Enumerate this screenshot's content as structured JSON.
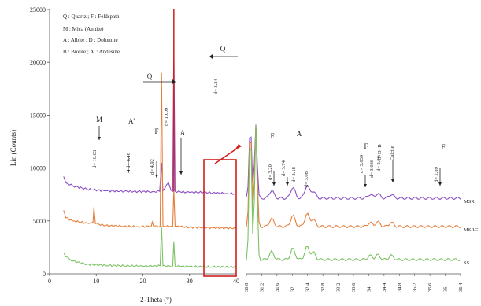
{
  "chart_data": {
    "type": "line",
    "xlabel": "2-Theta (°)",
    "ylabel": "Lin (Counts)",
    "xlim": [
      0,
      40
    ],
    "ylim": [
      0,
      25000
    ],
    "x_ticks": [
      "0",
      "10",
      "20",
      "30",
      "40"
    ],
    "y_ticks": [
      "0",
      "5000",
      "10000",
      "15000",
      "20000",
      "25000"
    ],
    "legend": [
      "Q : Quartz ; F : Feldspath",
      "M : Mica (Annite)",
      "A : Albite ; D : Dolomite",
      "B : Biotite ; A' : Andesine"
    ],
    "series": [
      {
        "name": "MSR",
        "color": "#8a4fc3",
        "points": [
          [
            3,
            9200
          ],
          [
            3.5,
            8600
          ],
          [
            5,
            8300
          ],
          [
            8,
            8000
          ],
          [
            12,
            7850
          ],
          [
            16,
            7800
          ],
          [
            19,
            7780
          ],
          [
            22,
            7760
          ],
          [
            23.6,
            7800
          ],
          [
            24.0,
            10500
          ],
          [
            24.3,
            7850
          ],
          [
            25.5,
            8600
          ],
          [
            26.0,
            7900
          ],
          [
            26.4,
            7800
          ],
          [
            26.64,
            22000
          ],
          [
            26.9,
            7800
          ],
          [
            28,
            7750
          ],
          [
            30,
            7700
          ],
          [
            33,
            7700
          ],
          [
            35,
            7650
          ],
          [
            38,
            7600
          ],
          [
            40,
            7550
          ]
        ]
      },
      {
        "name": "MSRC",
        "color": "#e67e3a",
        "points": [
          [
            3,
            6000
          ],
          [
            3.5,
            5300
          ],
          [
            5,
            5000
          ],
          [
            8,
            4800
          ],
          [
            9.3,
            4850
          ],
          [
            9.5,
            6300
          ],
          [
            9.8,
            4750
          ],
          [
            12,
            4550
          ],
          [
            16,
            4500
          ],
          [
            19,
            4450
          ],
          [
            21.8,
            4500
          ],
          [
            22.0,
            4900
          ],
          [
            22.3,
            4500
          ],
          [
            23.7,
            4500
          ],
          [
            24.0,
            19000
          ],
          [
            24.3,
            4500
          ],
          [
            26.4,
            4500
          ],
          [
            26.64,
            8000
          ],
          [
            26.9,
            4500
          ],
          [
            28,
            4450
          ],
          [
            30,
            4400
          ],
          [
            35,
            4350
          ],
          [
            40,
            4300
          ]
        ]
      },
      {
        "name": "SS",
        "color": "#7cc264",
        "points": [
          [
            3,
            2000
          ],
          [
            3.5,
            1600
          ],
          [
            5,
            1200
          ],
          [
            8,
            900
          ],
          [
            12,
            800
          ],
          [
            16,
            750
          ],
          [
            20,
            720
          ],
          [
            23.7,
            750
          ],
          [
            24.0,
            4500
          ],
          [
            24.3,
            750
          ],
          [
            26.4,
            720
          ],
          [
            26.64,
            3000
          ],
          [
            26.9,
            720
          ],
          [
            28,
            700
          ],
          [
            30,
            680
          ],
          [
            35,
            650
          ],
          [
            40,
            650
          ]
        ]
      }
    ],
    "left_annotations": [
      {
        "letter": "M",
        "d_label": "d= 10.03"
      },
      {
        "letter": "A'",
        "d_label": "d= 6.48"
      },
      {
        "letter": "F",
        "d_label": "d= 4.92"
      },
      {
        "letter": "Q",
        "d_label": "d= 10.09"
      },
      {
        "letter": "A",
        "d_label": ""
      },
      {
        "letter": "Q",
        "d_label": "d= 3.34"
      }
    ],
    "inset": {
      "xlabel": "",
      "x_ticks": [
        "30.8",
        "31.2",
        "31.6",
        "32",
        "32.4",
        "32.8",
        "33.2",
        "33.6",
        "34",
        "34.4",
        "34.8",
        "35.2",
        "35.6",
        "36",
        "36.4"
      ],
      "series_labels": [
        "MSR",
        "MSRC",
        "SS"
      ],
      "annotations": [
        {
          "letter": "F",
          "d_label": "d= 3.20"
        },
        {
          "letter": "",
          "d_label": "d= 3.74"
        },
        {
          "letter": "A",
          "d_label": "d= 3.18"
        },
        {
          "letter": "",
          "d_label": "d= 3.08"
        },
        {
          "letter": "F",
          "d_label": "d= 3.039"
        },
        {
          "letter": "",
          "d_label": "d= 3.036"
        },
        {
          "letter": "C+D+B",
          "d_label": "d= 2.90"
        },
        {
          "letter": "Calcite",
          "d_label": ""
        },
        {
          "letter": "F",
          "d_label": "d= 2.89"
        }
      ]
    }
  }
}
